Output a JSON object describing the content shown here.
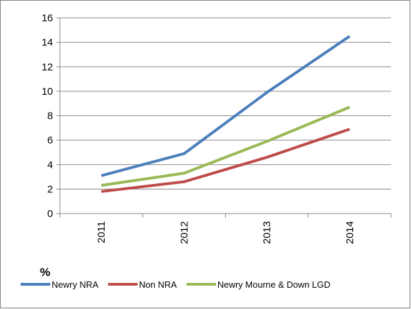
{
  "chart_data": {
    "type": "line",
    "title": "",
    "xlabel": "",
    "ylabel": "%",
    "categories": [
      "2011",
      "2012",
      "2013",
      "2014"
    ],
    "ylim": [
      0,
      16
    ],
    "yticks": [
      0,
      2,
      4,
      6,
      8,
      10,
      12,
      14,
      16
    ],
    "grid": true,
    "legend_position": "bottom",
    "series": [
      {
        "name": "Newry NRA",
        "color": "#4a7ebb",
        "values": [
          3.1,
          4.9,
          9.9,
          14.5
        ]
      },
      {
        "name": "Non NRA",
        "color": "#be4b48",
        "values": [
          1.8,
          2.6,
          4.6,
          6.9
        ]
      },
      {
        "name": "Newry Mourne & Down LGD",
        "color": "#98b954",
        "values": [
          2.3,
          3.3,
          5.9,
          8.7
        ]
      }
    ]
  }
}
